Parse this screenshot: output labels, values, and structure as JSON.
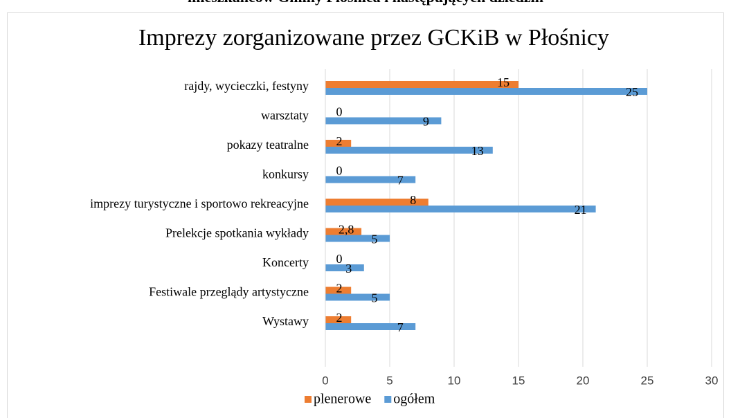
{
  "page_heading": "mieszkańców Gminy Płośnica i następujących dziedzin",
  "chart_data": {
    "type": "bar",
    "orientation": "horizontal",
    "title": "Imprezy zorganizowane przez GCKiB w Płośnicy",
    "categories": [
      "rajdy, wycieczki, festyny",
      "warsztaty",
      "pokazy teatralne",
      "konkursy",
      "imprezy turystyczne i sportowo rekreacyjne",
      "Prelekcje spotkania wykłady",
      "Koncerty",
      "Festiwale przeglądy artystyczne",
      "Wystawy"
    ],
    "series": [
      {
        "name": "plenerowe",
        "color": "#ed7d31",
        "values": [
          15,
          0,
          2,
          0,
          8,
          2.8,
          0,
          2,
          2
        ],
        "value_labels": [
          "15",
          "0",
          "2",
          "0",
          "8",
          "2,8",
          "0",
          "2",
          "2"
        ]
      },
      {
        "name": "ogółem",
        "color": "#5b9bd5",
        "values": [
          25,
          9,
          13,
          7,
          21,
          5,
          3,
          5,
          7
        ]
      }
    ],
    "xlim": [
      0,
      30
    ],
    "xticks": [
      0,
      5,
      10,
      15,
      20,
      25,
      30
    ],
    "grid": true,
    "legend": "bottom"
  }
}
